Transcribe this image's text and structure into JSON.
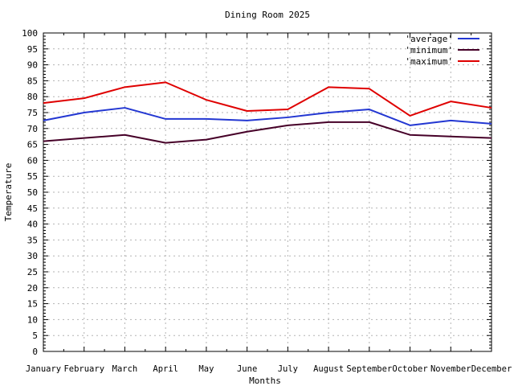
{
  "window": {
    "title": "Dining Room 2025"
  },
  "chart_data": {
    "type": "line",
    "title": "Dining Room 2025",
    "xlabel": "Months",
    "ylabel": "Temperature",
    "ylim": [
      0,
      100
    ],
    "ytick_step": 5,
    "grid": true,
    "legend_position": "top-right-inside",
    "categories": [
      "January",
      "February",
      "March",
      "April",
      "May",
      "June",
      "July",
      "August",
      "September",
      "October",
      "November",
      "December"
    ],
    "series": [
      {
        "name": "average",
        "legend_label": "'average'",
        "color": "#2337d2",
        "values": [
          72.5,
          75,
          76.5,
          73,
          73,
          72.5,
          73.5,
          75,
          76,
          71,
          72.5,
          71.5
        ]
      },
      {
        "name": "minimum",
        "legend_label": "'minimum'",
        "color": "#460028",
        "values": [
          66,
          67,
          68,
          65.5,
          66.5,
          69,
          71,
          72,
          72,
          68,
          67.5,
          67
        ]
      },
      {
        "name": "maximum",
        "legend_label": "'maximum'",
        "color": "#df0000",
        "values": [
          78,
          79.5,
          83,
          84.5,
          79,
          75.5,
          76,
          83,
          82.5,
          74,
          78.5,
          76.5
        ]
      }
    ],
    "colors": {
      "axis": "#000000",
      "grid": "#b3b3b3",
      "background": "#ffffff"
    }
  }
}
